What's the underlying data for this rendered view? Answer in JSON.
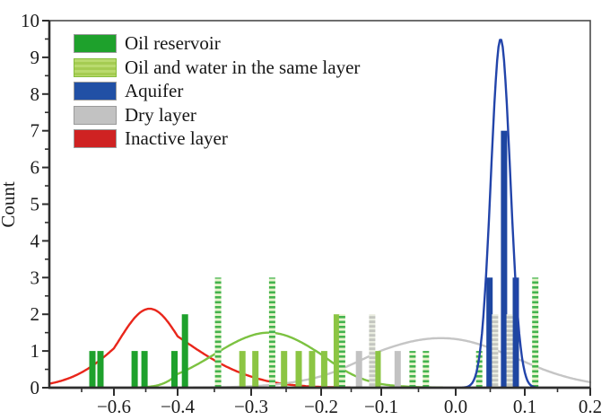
{
  "figure": {
    "background": "#ffffff"
  },
  "legend": {
    "items": [
      {
        "label": "Oil reservoir",
        "color": "#1ea12c",
        "pattern": "solid"
      },
      {
        "label": "Oil and water in the same layer",
        "color": "#a5cc52",
        "pattern": "hatched"
      },
      {
        "label": "Aquifer",
        "color": "#2150a5",
        "pattern": "solid"
      },
      {
        "label": "Dry layer",
        "color": "#c2c2c2",
        "pattern": "solid"
      },
      {
        "label": "Inactive layer",
        "color": "#cf2222",
        "pattern": "solid"
      }
    ]
  },
  "chart_data": {
    "type": "bar",
    "title": "",
    "xlabel": "",
    "ylabel": "Count",
    "x_axis": {
      "range": [
        -0.72,
        0.2
      ],
      "tick_values": [
        -0.6,
        -0.4,
        -0.3,
        -0.2,
        -0.1,
        0.0,
        0.1,
        0.2
      ],
      "tick_labels": [
        "−0.6",
        "−0.4",
        "−0.3",
        "−0.2",
        "−0.1",
        "0.0",
        "0.1",
        "0.2"
      ]
    },
    "y_axis": {
      "range": [
        0,
        10
      ],
      "tick_labels": [
        "0",
        "1",
        "2",
        "3",
        "4",
        "5",
        "6",
        "7",
        "8",
        "9",
        "10"
      ],
      "minor_step": 0.5
    },
    "grid": false,
    "legend_position": "upper-left",
    "series": [
      {
        "key": "oil",
        "name": "Oil reservoir",
        "color": "#1ea12c",
        "bars": [
          {
            "x": -0.64,
            "count": 1,
            "hatched": false
          },
          {
            "x": -0.625,
            "count": 1,
            "hatched": false
          },
          {
            "x": -0.535,
            "count": 1,
            "hatched": false
          },
          {
            "x": -0.504,
            "count": 1,
            "hatched": false
          },
          {
            "x": -0.41,
            "count": 1,
            "hatched": false
          },
          {
            "x": -0.39,
            "count": 2,
            "hatched": false
          }
        ]
      },
      {
        "key": "oilwater",
        "name": "Oil and water in the same layer",
        "color": "#8cc544",
        "bars": [
          {
            "x": -0.345,
            "count": 3,
            "hatched": true
          },
          {
            "x": -0.312,
            "count": 1,
            "hatched": false
          },
          {
            "x": -0.294,
            "count": 1,
            "hatched": false
          },
          {
            "x": -0.27,
            "count": 3,
            "hatched": true
          },
          {
            "x": -0.253,
            "count": 1,
            "hatched": false
          },
          {
            "x": -0.232,
            "count": 1,
            "hatched": false
          },
          {
            "x": -0.213,
            "count": 1,
            "hatched": false
          },
          {
            "x": -0.195,
            "count": 1,
            "hatched": false
          },
          {
            "x": -0.174,
            "count": 2,
            "hatched": false
          },
          {
            "x": -0.165,
            "count": 2,
            "hatched": true
          },
          {
            "x": -0.106,
            "count": 1,
            "hatched": false
          },
          {
            "x": -0.058,
            "count": 1,
            "hatched": true
          },
          {
            "x": -0.04,
            "count": 1,
            "hatched": true
          },
          {
            "x": 0.034,
            "count": 1,
            "hatched": true
          },
          {
            "x": 0.116,
            "count": 3,
            "hatched": true
          }
        ]
      },
      {
        "key": "aquifer",
        "name": "Aquifer",
        "color": "#1e46a1",
        "bars": [
          {
            "x": 0.049,
            "count": 3,
            "hatched": false
          },
          {
            "x": 0.07,
            "count": 7,
            "hatched": false
          },
          {
            "x": 0.087,
            "count": 3,
            "hatched": false
          }
        ]
      },
      {
        "key": "dry",
        "name": "Dry layer",
        "color": "#c2c2c2",
        "bars": [
          {
            "x": -0.137,
            "count": 1,
            "hatched": false
          },
          {
            "x": -0.115,
            "count": 2,
            "hatched": true
          },
          {
            "x": -0.078,
            "count": 1,
            "hatched": false
          },
          {
            "x": 0.057,
            "count": 2,
            "hatched": true
          },
          {
            "x": 0.078,
            "count": 2,
            "hatched": true
          }
        ]
      },
      {
        "key": "inactive",
        "name": "Inactive layer",
        "color": "#cf2222",
        "bars": []
      }
    ],
    "curves": [
      {
        "key": "inactive",
        "name": "Inactive layer fit",
        "color": "#e9261b",
        "center": -0.488,
        "peak": 2.15,
        "sigma": 0.095
      },
      {
        "key": "oilwater",
        "name": "Oil and water fit",
        "color": "#7cc241",
        "center": -0.275,
        "peak": 1.5,
        "sigma": 0.075
      },
      {
        "key": "dry",
        "name": "Dry layer fit",
        "color": "#c5c5c5",
        "center": -0.02,
        "peak": 1.35,
        "sigma": 0.105
      },
      {
        "key": "aquifer",
        "name": "Aquifer fit",
        "color": "#2244aa",
        "center": 0.065,
        "peak": 9.5,
        "sigma": 0.014
      }
    ]
  }
}
